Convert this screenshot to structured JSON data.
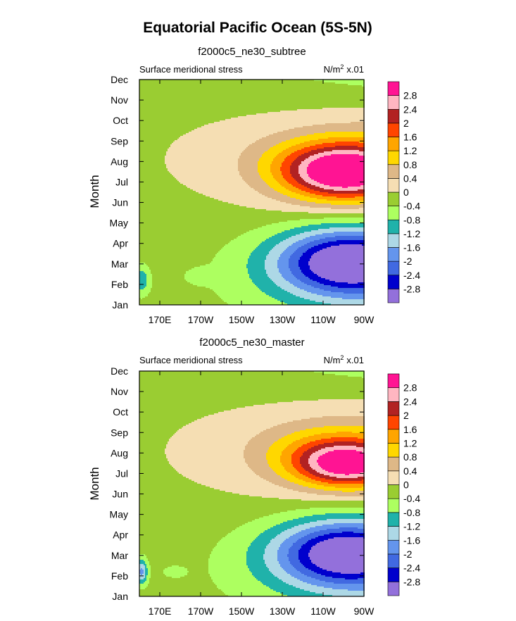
{
  "figure": {
    "title": "Equatorial Pacific Ocean (5S-5N)",
    "units_label": "N/m",
    "units_exp": "2",
    "units_scale": "x.01"
  },
  "colors": {
    "levels": [
      -2.8,
      -2.4,
      -2.0,
      -1.6,
      -1.2,
      -0.8,
      -0.4,
      0.0,
      0.4,
      0.8,
      1.2,
      1.6,
      2.0,
      2.4,
      2.8
    ],
    "fills": [
      "#9370db",
      "#0000cd",
      "#4169e1",
      "#6495ed",
      "#add8e6",
      "#20b2aa",
      "#adff60",
      "#9acd32",
      "#f5deb3",
      "#deb887",
      "#ffd700",
      "#ffa500",
      "#ff4500",
      "#b22222",
      "#ffb6c1",
      "#ff1493"
    ]
  },
  "chart_data": [
    {
      "type": "heatmap",
      "title": "f2000c5_ne30_subtree",
      "left_label": "Surface meridional stress",
      "ylabel": "Month",
      "xlabel": "",
      "x_ticks": [
        "170E",
        "170W",
        "150W",
        "130W",
        "110W",
        "90W"
      ],
      "x_tick_lon": [
        170,
        190,
        210,
        230,
        250,
        270
      ],
      "xlim_lon": [
        160,
        270
      ],
      "y_ticks": [
        "Jan",
        "Feb",
        "Mar",
        "Apr",
        "May",
        "Jun",
        "Jul",
        "Aug",
        "Sep",
        "Oct",
        "Nov",
        "Dec"
      ],
      "colorbar_ticks": [
        "-2.8",
        "-2.4",
        "-2",
        "-1.6",
        "-1.2",
        "-0.8",
        "-0.4",
        "0",
        "0.4",
        "0.8",
        "1.2",
        "1.6",
        "2",
        "2.4",
        "2.8"
      ],
      "features": [
        {
          "month": 2.1,
          "lon": 262,
          "peak": -3.0,
          "rlon": 34,
          "rmon": 1.6
        },
        {
          "month": 1.4,
          "lon": 190,
          "peak": -0.35,
          "rlon": 7,
          "rmon": 0.35
        },
        {
          "month": 1.2,
          "lon": 161,
          "peak": -0.9,
          "rlon": 4,
          "rmon": 0.7
        },
        {
          "month": 6.3,
          "lon": 260,
          "peak": 2.6,
          "rlon": 30,
          "rmon": 1.3
        },
        {
          "month": 7.1,
          "lon": 258,
          "peak": 1.1,
          "rlon": 36,
          "rmon": 1.3
        }
      ]
    },
    {
      "type": "heatmap",
      "title": "f2000c5_ne30_master",
      "left_label": "Surface meridional stress",
      "ylabel": "Month",
      "xlabel": "",
      "x_ticks": [
        "170E",
        "170W",
        "150W",
        "130W",
        "110W",
        "90W"
      ],
      "x_tick_lon": [
        170,
        190,
        210,
        230,
        250,
        270
      ],
      "xlim_lon": [
        160,
        270
      ],
      "y_ticks": [
        "Jan",
        "Feb",
        "Mar",
        "Apr",
        "May",
        "Jun",
        "Jul",
        "Aug",
        "Sep",
        "Oct",
        "Nov",
        "Dec"
      ],
      "colorbar_ticks": [
        "-2.8",
        "-2.4",
        "-2",
        "-1.6",
        "-1.2",
        "-0.8",
        "-0.4",
        "0",
        "0.4",
        "0.8",
        "1.2",
        "1.6",
        "2",
        "2.4",
        "2.8"
      ],
      "features": [
        {
          "month": 2.1,
          "lon": 261,
          "peak": -2.9,
          "rlon": 34,
          "rmon": 1.6
        },
        {
          "month": 1.2,
          "lon": 177,
          "peak": -0.3,
          "rlon": 6,
          "rmon": 0.3
        },
        {
          "month": 1.2,
          "lon": 161,
          "peak": -1.5,
          "rlon": 3,
          "rmon": 0.6
        },
        {
          "month": 6.4,
          "lon": 262,
          "peak": 2.3,
          "rlon": 25,
          "rmon": 1.1
        },
        {
          "month": 7.0,
          "lon": 253,
          "peak": 1.0,
          "rlon": 34,
          "rmon": 1.4
        }
      ]
    }
  ]
}
